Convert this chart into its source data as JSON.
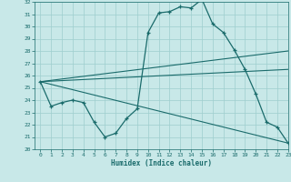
{
  "title": "",
  "xlabel": "Humidex (Indice chaleur)",
  "bg_color": "#c8e8e8",
  "grid_color": "#9ecece",
  "line_color": "#1a6b6b",
  "ylim": [
    20,
    32
  ],
  "xlim": [
    -0.5,
    23
  ],
  "yticks": [
    20,
    21,
    22,
    23,
    24,
    25,
    26,
    27,
    28,
    29,
    30,
    31,
    32
  ],
  "xticks": [
    0,
    1,
    2,
    3,
    4,
    5,
    6,
    7,
    8,
    9,
    10,
    11,
    12,
    13,
    14,
    15,
    16,
    17,
    18,
    19,
    20,
    21,
    22,
    23
  ],
  "main_line": {
    "x": [
      0,
      1,
      2,
      3,
      4,
      5,
      6,
      7,
      8,
      9,
      10,
      11,
      12,
      13,
      14,
      15,
      16,
      17,
      18,
      19,
      20,
      21,
      22,
      23
    ],
    "y": [
      25.5,
      23.5,
      23.8,
      24.0,
      23.8,
      22.2,
      21.0,
      21.3,
      22.5,
      23.3,
      29.5,
      31.1,
      31.2,
      31.6,
      31.5,
      32.2,
      30.2,
      29.5,
      28.1,
      26.5,
      24.5,
      22.2,
      21.8,
      20.5
    ]
  },
  "fan_lines": [
    {
      "x": [
        0,
        23
      ],
      "y": [
        25.5,
        28.0
      ]
    },
    {
      "x": [
        0,
        23
      ],
      "y": [
        25.5,
        26.5
      ]
    },
    {
      "x": [
        0,
        23
      ],
      "y": [
        25.5,
        20.5
      ]
    }
  ]
}
